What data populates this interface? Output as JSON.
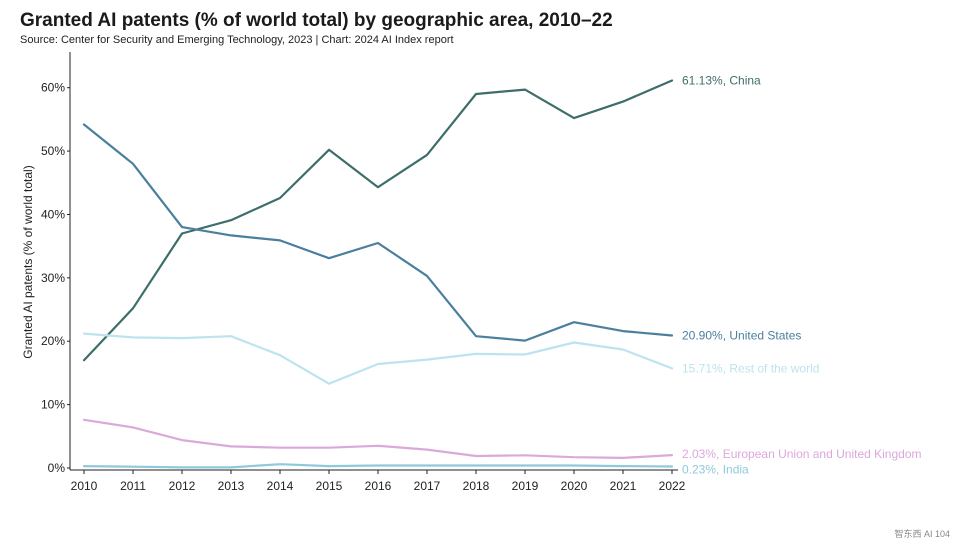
{
  "chart_data": {
    "type": "line",
    "title": "Granted AI patents (% of world total) by geographic area, 2010–22",
    "subtitle": "Source: Center for Security and Emerging Technology, 2023 | Chart: 2024 AI Index report",
    "xlabel": "",
    "ylabel": "Granted AI patents (% of world total)",
    "ylim": [
      0,
      65
    ],
    "grid": false,
    "x": [
      2010,
      2011,
      2012,
      2013,
      2014,
      2015,
      2016,
      2017,
      2018,
      2019,
      2020,
      2021,
      2022
    ],
    "y_ticks": [
      0,
      10,
      20,
      30,
      40,
      50,
      60
    ],
    "y_tick_labels": [
      "0%",
      "10%",
      "20%",
      "30%",
      "40%",
      "50%",
      "60%"
    ],
    "series": [
      {
        "name": "China",
        "label": "61.13%, China",
        "color": "#3e6e6a",
        "values": [
          17.0,
          25.2,
          37.0,
          39.1,
          42.6,
          50.2,
          44.3,
          49.4,
          59.0,
          59.7,
          55.2,
          57.8,
          61.13
        ]
      },
      {
        "name": "United States",
        "label": "20.90%, United States",
        "color": "#4a7f9e",
        "values": [
          54.2,
          48.0,
          38.0,
          36.7,
          35.9,
          33.1,
          35.5,
          30.3,
          20.8,
          20.1,
          23.0,
          21.6,
          20.9
        ]
      },
      {
        "name": "Rest of the world",
        "label": "15.71%, Rest of the world",
        "color": "#bde3ee",
        "values": [
          21.2,
          20.6,
          20.5,
          20.8,
          17.8,
          13.3,
          16.4,
          17.1,
          18.0,
          17.9,
          19.8,
          18.7,
          15.71
        ]
      },
      {
        "name": "European Union and United Kingdom",
        "label": "2.03%, European Union and United Kingdom",
        "color": "#dca8dc",
        "values": [
          7.6,
          6.4,
          4.4,
          3.4,
          3.2,
          3.2,
          3.5,
          2.9,
          1.9,
          2.0,
          1.7,
          1.6,
          2.03
        ]
      },
      {
        "name": "India",
        "label": "0.23%, India",
        "color": "#8fc9dc",
        "values": [
          0.3,
          0.2,
          0.1,
          0.1,
          0.6,
          0.3,
          0.4,
          0.4,
          0.4,
          0.4,
          0.4,
          0.3,
          0.23
        ]
      }
    ]
  },
  "watermark": "智东西 AI 104"
}
